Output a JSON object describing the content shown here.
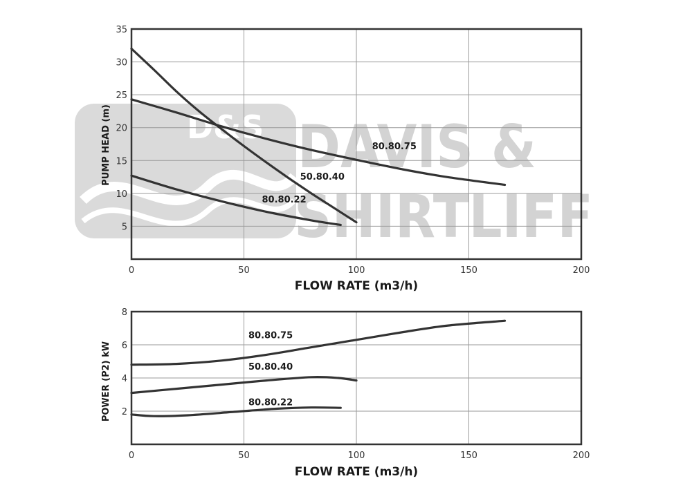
{
  "watermark": {
    "logo_text": "D&S",
    "brand_line1": "DAVIS &",
    "brand_line2": "SHIRTLIFF"
  },
  "chart_data": [
    {
      "type": "line",
      "xlabel": "FLOW RATE (m3/h)",
      "ylabel": "PUMP HEAD (m)",
      "xlim": [
        0,
        200
      ],
      "ylim": [
        0,
        35
      ],
      "x_ticks": [
        0,
        50,
        100,
        150,
        200
      ],
      "y_ticks": [
        5,
        10,
        15,
        20,
        25,
        30,
        35
      ],
      "grid": true,
      "series": [
        {
          "name": "80.80.75",
          "label_at": [
            107,
            16.7
          ],
          "points": [
            [
              0,
              24.3
            ],
            [
              20,
              22.3
            ],
            [
              40,
              20.2
            ],
            [
              60,
              18.3
            ],
            [
              80,
              16.6
            ],
            [
              100,
              15.1
            ],
            [
              120,
              13.7
            ],
            [
              140,
              12.5
            ],
            [
              166,
              11.3
            ]
          ]
        },
        {
          "name": "50.80.40",
          "label_at": [
            75,
            12.1
          ],
          "points": [
            [
              0,
              32
            ],
            [
              10,
              28.8
            ],
            [
              20,
              25.5
            ],
            [
              30,
              22.5
            ],
            [
              40,
              19.8
            ],
            [
              50,
              17.2
            ],
            [
              60,
              14.7
            ],
            [
              70,
              12.3
            ],
            [
              80,
              10.0
            ],
            [
              90,
              7.8
            ],
            [
              100,
              5.6
            ]
          ]
        },
        {
          "name": "80.80.22",
          "label_at": [
            58,
            8.6
          ],
          "points": [
            [
              0,
              12.7
            ],
            [
              20,
              10.6
            ],
            [
              40,
              8.8
            ],
            [
              60,
              7.2
            ],
            [
              80,
              5.9
            ],
            [
              93,
              5.2
            ]
          ]
        }
      ]
    },
    {
      "type": "line",
      "xlabel": "FLOW RATE (m3/h)",
      "ylabel": "POWER (P2) kW",
      "xlim": [
        0,
        200
      ],
      "ylim": [
        0,
        8
      ],
      "x_ticks": [
        0,
        50,
        100,
        150,
        200
      ],
      "y_ticks": [
        2,
        4,
        6,
        8
      ],
      "grid": true,
      "series": [
        {
          "name": "80.80.75",
          "label_at": [
            52,
            6.4
          ],
          "points": [
            [
              0,
              4.8
            ],
            [
              20,
              4.85
            ],
            [
              40,
              5.05
            ],
            [
              60,
              5.4
            ],
            [
              80,
              5.85
            ],
            [
              100,
              6.3
            ],
            [
              120,
              6.75
            ],
            [
              140,
              7.15
            ],
            [
              166,
              7.45
            ]
          ]
        },
        {
          "name": "50.80.40",
          "label_at": [
            52,
            4.5
          ],
          "points": [
            [
              0,
              3.1
            ],
            [
              20,
              3.35
            ],
            [
              40,
              3.6
            ],
            [
              60,
              3.85
            ],
            [
              80,
              4.05
            ],
            [
              92,
              4.0
            ],
            [
              100,
              3.85
            ]
          ]
        },
        {
          "name": "80.80.22",
          "label_at": [
            52,
            2.35
          ],
          "points": [
            [
              0,
              1.8
            ],
            [
              10,
              1.7
            ],
            [
              25,
              1.75
            ],
            [
              45,
              1.95
            ],
            [
              65,
              2.15
            ],
            [
              80,
              2.22
            ],
            [
              93,
              2.2
            ]
          ]
        }
      ]
    }
  ]
}
